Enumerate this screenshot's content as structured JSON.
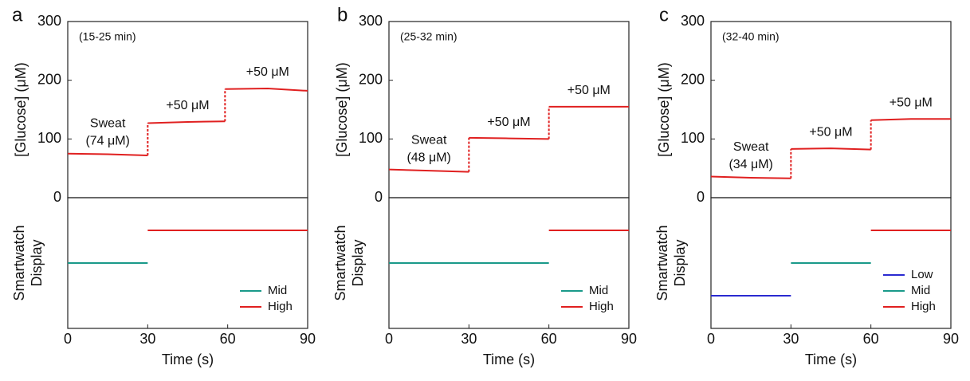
{
  "chart_data": [
    {
      "type": "line",
      "panel": "a",
      "note": "(15-25 min)",
      "ylabel": "[Glucose] (μM)",
      "xlim": [
        0,
        90
      ],
      "ylim": [
        0,
        300
      ],
      "yticks": [
        0,
        100,
        200,
        300
      ],
      "annotations": [
        "Sweat",
        "(74 μM)",
        "+50 μM",
        "+50 μM"
      ],
      "series": [
        {
          "name": "Glucose",
          "color": "#e02020",
          "x": [
            0,
            15,
            30,
            30,
            45,
            59,
            59,
            75,
            90
          ],
          "values": [
            75,
            74,
            72,
            127,
            129,
            130,
            185,
            186,
            182
          ]
        }
      ]
    },
    {
      "type": "segments",
      "ylabel": [
        "Smartwatch",
        "Display"
      ],
      "xlabel": "Time (s)",
      "xlim": [
        0,
        90
      ],
      "xticks": [
        0,
        30,
        60,
        90
      ],
      "ylim": [
        0,
        4
      ],
      "legend": "lower right",
      "series": [
        {
          "name": "Mid",
          "color": "#1a9a8a",
          "x": [
            0,
            30
          ],
          "values": [
            2,
            2
          ]
        },
        {
          "name": "High",
          "color": "#e02020",
          "x": [
            30,
            90
          ],
          "values": [
            3,
            3
          ]
        }
      ]
    },
    {
      "type": "line",
      "panel": "b",
      "note": "(25-32 min)",
      "ylabel": "[Glucose] (μM)",
      "xlim": [
        0,
        90
      ],
      "ylim": [
        0,
        300
      ],
      "yticks": [
        0,
        100,
        200,
        300
      ],
      "annotations": [
        "Sweat",
        "(48 μM)",
        "+50 μM",
        "+50 μM"
      ],
      "series": [
        {
          "name": "Glucose",
          "color": "#e02020",
          "x": [
            0,
            15,
            30,
            30,
            45,
            60,
            60,
            75,
            90
          ],
          "values": [
            48,
            46,
            44,
            102,
            101,
            100,
            155,
            155,
            155
          ]
        }
      ]
    },
    {
      "type": "segments",
      "ylabel": [
        "Smartwatch",
        "Display"
      ],
      "xlabel": "Time (s)",
      "xlim": [
        0,
        90
      ],
      "xticks": [
        0,
        30,
        60,
        90
      ],
      "ylim": [
        0,
        4
      ],
      "legend": "lower right",
      "series": [
        {
          "name": "Mid",
          "color": "#1a9a8a",
          "x": [
            0,
            60
          ],
          "values": [
            2,
            2
          ]
        },
        {
          "name": "High",
          "color": "#e02020",
          "x": [
            60,
            90
          ],
          "values": [
            3,
            3
          ]
        }
      ]
    },
    {
      "type": "line",
      "panel": "c",
      "note": "(32-40 min)",
      "ylabel": "[Glucose] (μM)",
      "xlim": [
        0,
        90
      ],
      "ylim": [
        0,
        300
      ],
      "yticks": [
        0,
        100,
        200,
        300
      ],
      "annotations": [
        "Sweat",
        "(34 μM)",
        "+50 μM",
        "+50 μM"
      ],
      "series": [
        {
          "name": "Glucose",
          "color": "#e02020",
          "x": [
            0,
            15,
            30,
            30,
            45,
            60,
            60,
            75,
            90
          ],
          "values": [
            36,
            34,
            33,
            83,
            84,
            82,
            132,
            134,
            134
          ]
        }
      ]
    },
    {
      "type": "segments",
      "ylabel": [
        "Smartwatch",
        "Display"
      ],
      "xlabel": "Time (s)",
      "xlim": [
        0,
        90
      ],
      "xticks": [
        0,
        30,
        60,
        90
      ],
      "ylim": [
        0,
        4
      ],
      "legend": "lower right",
      "series": [
        {
          "name": "Low",
          "color": "#2a2ad0",
          "x": [
            0,
            30
          ],
          "values": [
            1,
            1
          ]
        },
        {
          "name": "Mid",
          "color": "#1a9a8a",
          "x": [
            30,
            60
          ],
          "values": [
            2,
            2
          ]
        },
        {
          "name": "High",
          "color": "#e02020",
          "x": [
            60,
            90
          ],
          "values": [
            3,
            3
          ]
        }
      ]
    }
  ]
}
